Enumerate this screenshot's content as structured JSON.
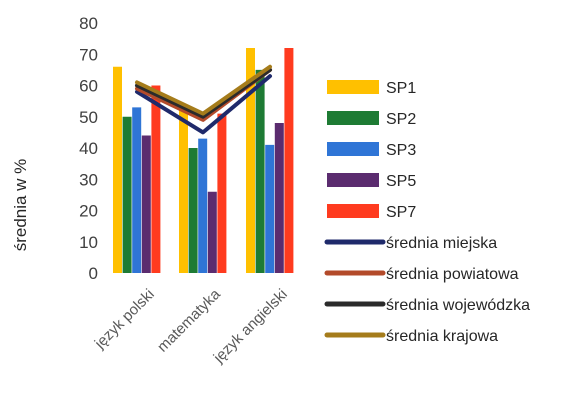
{
  "chart_data": {
    "type": "bar",
    "ylabel": "średnia w %",
    "ylim": [
      0,
      80
    ],
    "yticks": [
      0,
      10,
      20,
      30,
      40,
      50,
      60,
      70,
      80
    ],
    "grid": false,
    "legend_position": "right",
    "categories": [
      "język polski",
      "matematyka",
      "język angielski"
    ],
    "series": [
      {
        "name": "SP1",
        "kind": "bar",
        "color": "#FFC000",
        "values": [
          66,
          53,
          72
        ]
      },
      {
        "name": "SP2",
        "kind": "bar",
        "color": "#1E7B34",
        "values": [
          50,
          40,
          65
        ]
      },
      {
        "name": "SP3",
        "kind": "bar",
        "color": "#2F75D6",
        "values": [
          53,
          43,
          41
        ]
      },
      {
        "name": "SP5",
        "kind": "bar",
        "color": "#5B2C6F",
        "values": [
          44,
          26,
          48
        ]
      },
      {
        "name": "SP7",
        "kind": "bar",
        "color": "#FF3B1F",
        "values": [
          60,
          51,
          72
        ]
      },
      {
        "name": "średnia miejska",
        "kind": "line",
        "color": "#1F2A6B",
        "values": [
          58,
          45,
          63
        ]
      },
      {
        "name": "średnia powiatowa",
        "kind": "line",
        "color": "#B34A2A",
        "values": [
          59,
          49,
          65
        ]
      },
      {
        "name": "średnia wojewódzka",
        "kind": "line",
        "color": "#2B2B2B",
        "values": [
          60,
          50,
          65
        ]
      },
      {
        "name": "średnia krajowa",
        "kind": "line",
        "color": "#A57C1B",
        "values": [
          61,
          51,
          66
        ]
      }
    ]
  }
}
